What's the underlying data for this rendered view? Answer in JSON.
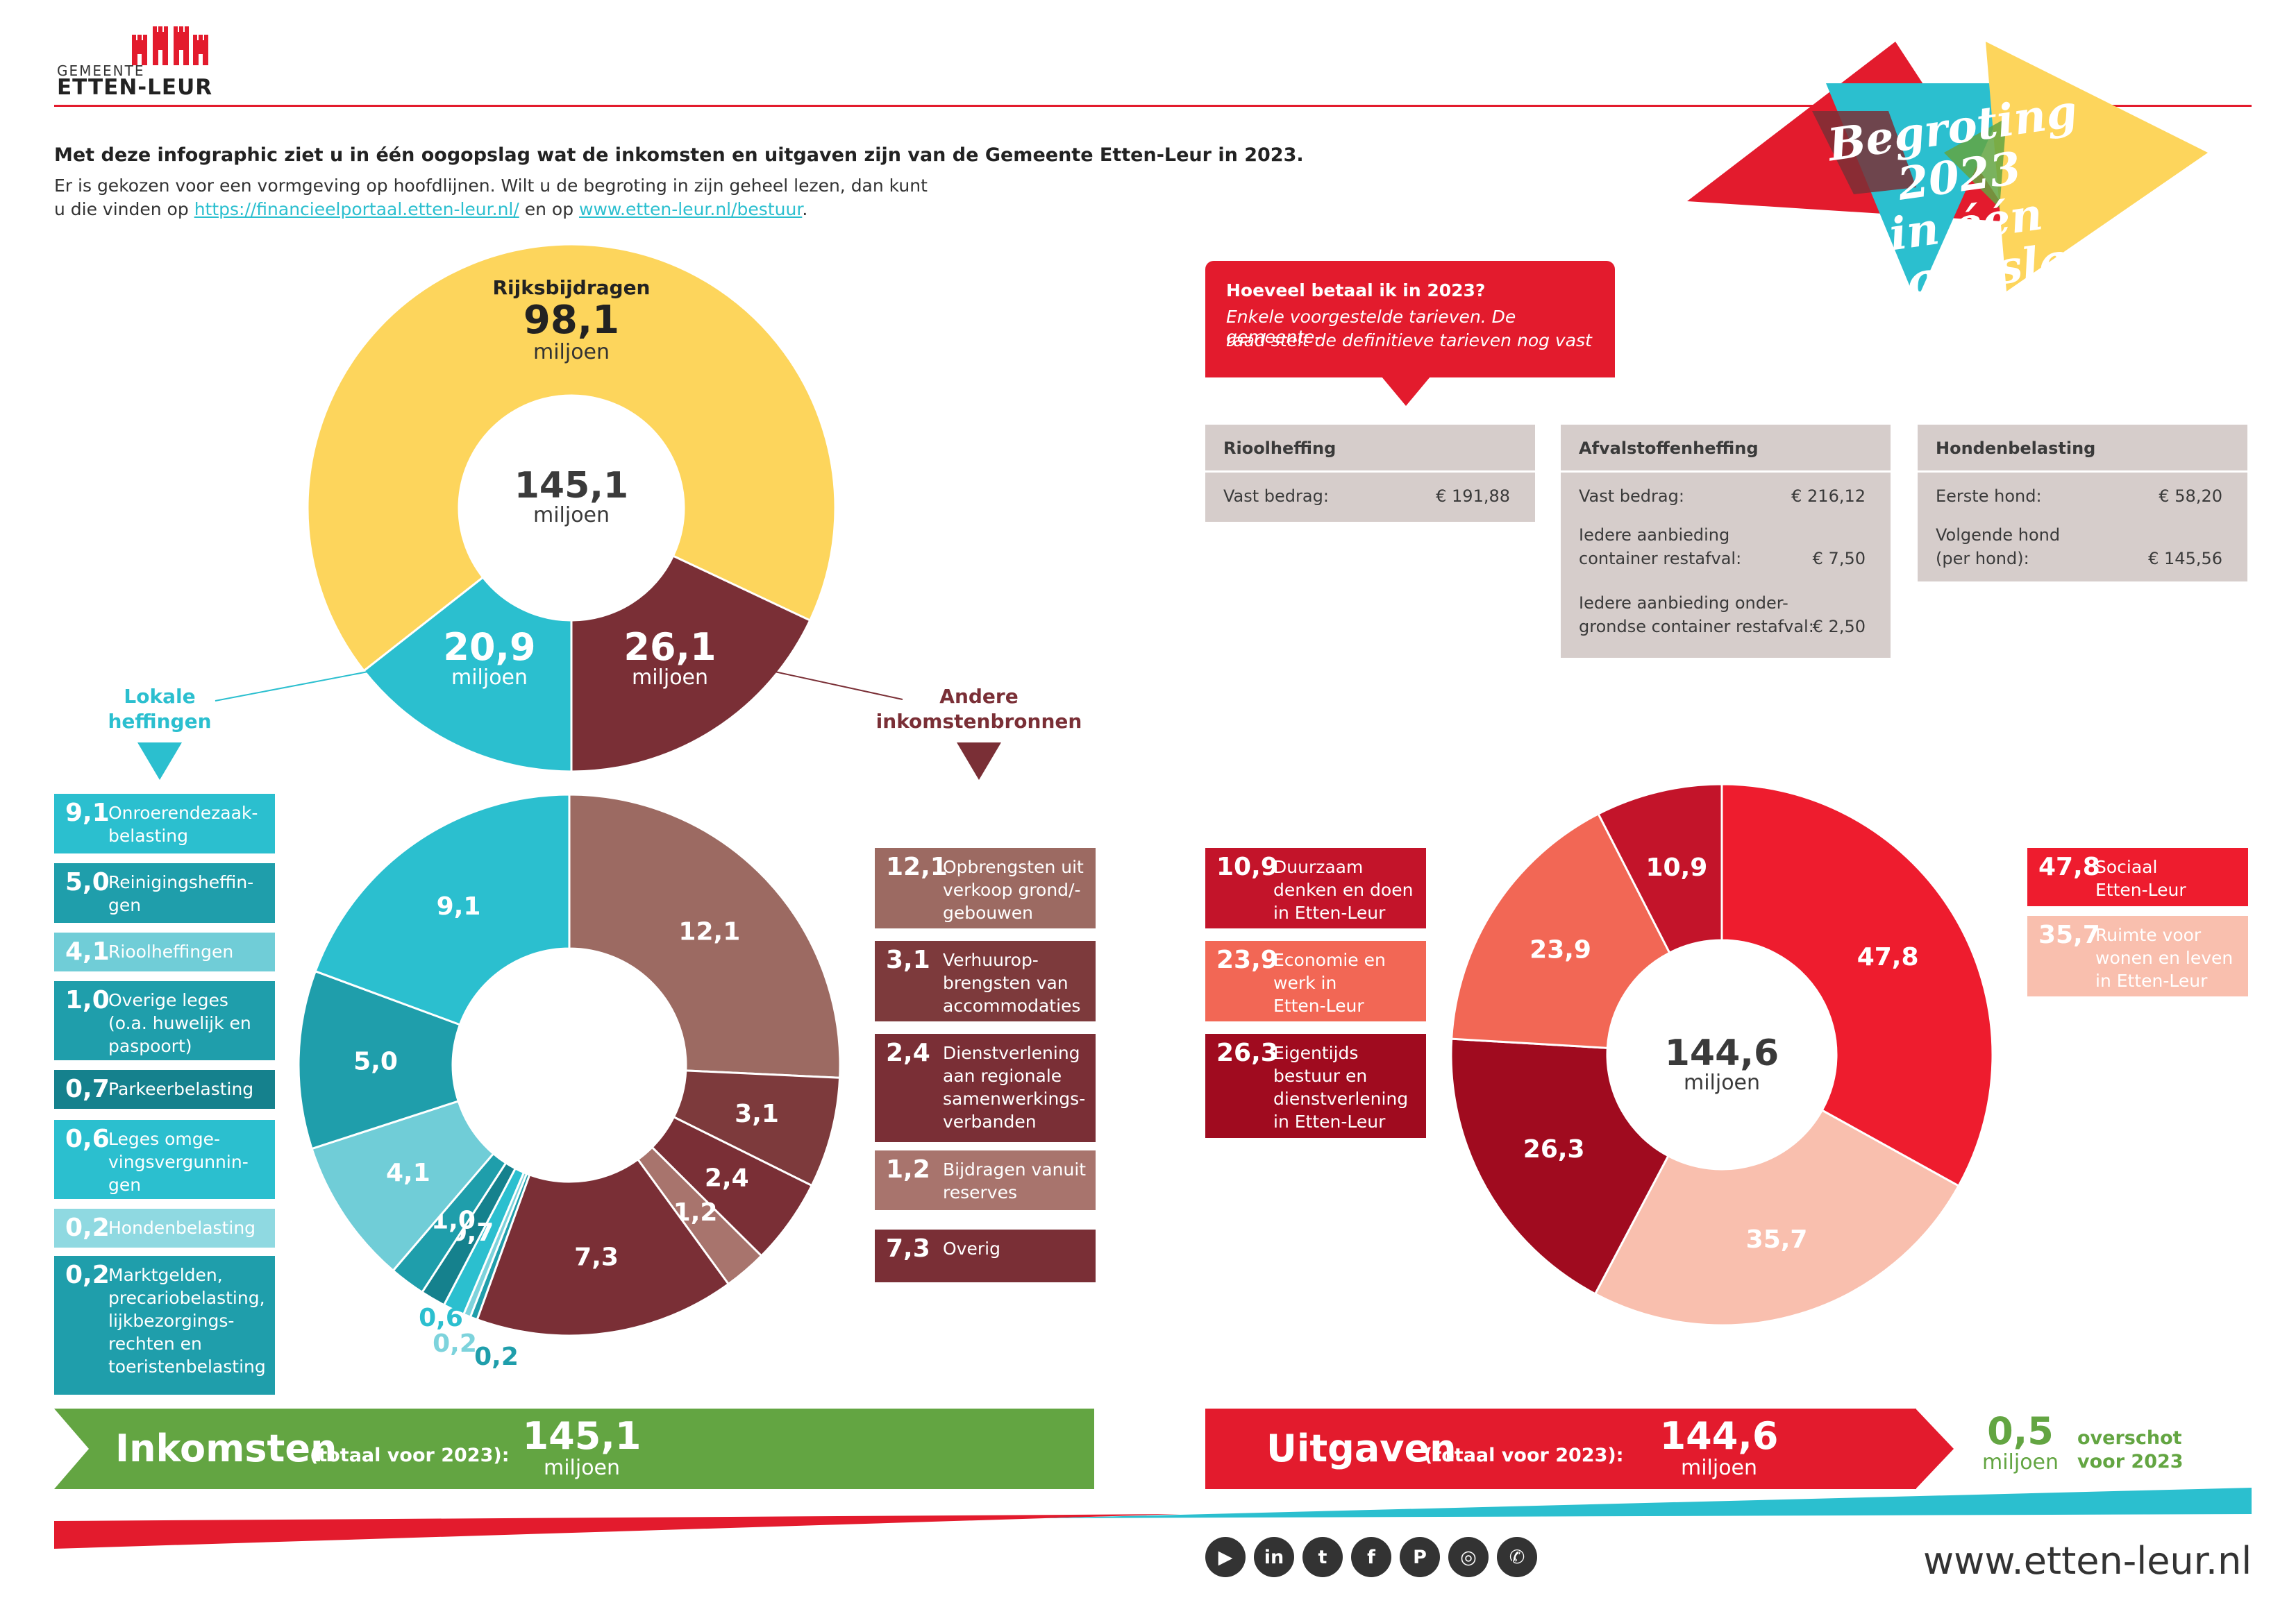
{
  "logo": {
    "small": "GEMEENTE",
    "big": "ETTEN-LEUR"
  },
  "banner": {
    "line1": "Begroting 2023",
    "line2": "in één oogopslag"
  },
  "intro": {
    "heading": "Met deze infographic ziet u in één oogopslag wat de inkomsten en uitgaven zijn van de Gemeente Etten-Leur in 2023.",
    "line2": "Er is gekozen voor een vormgeving op hoofdlijnen. Wilt u de begroting in zijn geheel lezen, dan kunt",
    "line3_a": "u die vinden op ",
    "link1": "https://financieelportaal.etten-leur.nl/",
    "line3_b": " en op ",
    "link2": "www.etten-leur.nl/bestuur",
    "line3_c": "."
  },
  "colors": {
    "yellow": "#fdd55c",
    "cyan": "#2bbfcf",
    "maroon": "#7a2f36",
    "green": "#63a542",
    "red": "#e31b2d"
  },
  "income_top": {
    "total": "145,1",
    "unit": "miljoen",
    "segments": [
      {
        "name": "Rijksbijdragen",
        "value": 98.1,
        "label": "98,1",
        "color": "#fdd55c"
      },
      {
        "name": "Andere inkomstenbronnen",
        "value": 26.1,
        "label": "26,1",
        "color": "#7a2f36"
      },
      {
        "name": "Lokale heffingen",
        "value": 20.9,
        "label": "20,9",
        "color": "#2bbfcf"
      }
    ],
    "label_rijks": "Rijksbijdragen",
    "label_lokale": "Lokale heffingen",
    "label_andere": "Andere inkomstenbronnen"
  },
  "income_detail": {
    "slices": [
      {
        "label": "12,1",
        "value": 12.1,
        "color": "#9c6a62"
      },
      {
        "label": "3,1",
        "value": 3.1,
        "color": "#7d3a3c"
      },
      {
        "label": "2,4",
        "value": 2.4,
        "color": "#7a2f36"
      },
      {
        "label": "1,2",
        "value": 1.2,
        "color": "#a8746d"
      },
      {
        "label": "7,3",
        "value": 7.3,
        "color": "#7a2f36"
      },
      {
        "label": "0,2",
        "value": 0.2,
        "color": "#1f9eab"
      },
      {
        "label": "0,2",
        "value": 0.2,
        "color": "#7dd3dc"
      },
      {
        "label": "0,6",
        "value": 0.6,
        "color": "#2bbfcf"
      },
      {
        "label": "0,7",
        "value": 0.7,
        "color": "#15818d"
      },
      {
        "label": "1,0",
        "value": 1.0,
        "color": "#1f9eab"
      },
      {
        "label": "4,1",
        "value": 4.1,
        "color": "#70cdd7"
      },
      {
        "label": "5,0",
        "value": 5.0,
        "color": "#1f9eab"
      },
      {
        "label": "9,1",
        "value": 9.1,
        "color": "#2bbfcf"
      }
    ]
  },
  "lokale_items": [
    {
      "value": "9,1",
      "text": [
        "Onroerendezaak-",
        "belasting"
      ],
      "color": "#2bbfcf"
    },
    {
      "value": "5,0",
      "text": [
        "Reinigingsheffin-",
        "gen"
      ],
      "color": "#1f9eab"
    },
    {
      "value": "4,1",
      "text": [
        "Rioolheffingen"
      ],
      "color": "#70cdd7"
    },
    {
      "value": "1,0",
      "text": [
        "Overige leges",
        "(o.a. huwelijk en",
        "paspoort)"
      ],
      "color": "#1f9eab"
    },
    {
      "value": "0,7",
      "text": [
        "Parkeerbelasting"
      ],
      "color": "#15818d"
    },
    {
      "value": "0,6",
      "text": [
        "Leges omge-",
        "vingsvergunnin-",
        "gen"
      ],
      "color": "#2bbfcf"
    },
    {
      "value": "0,2",
      "text": [
        "Hondenbelasting"
      ],
      "color": "#8fd9e1"
    },
    {
      "value": "0,2",
      "text": [
        "Marktgelden,",
        "precariobelasting,",
        "lijkbezorgings-",
        "rechten en",
        "toeristenbelasting"
      ],
      "color": "#1f9eab"
    }
  ],
  "andere_items": [
    {
      "value": "12,1",
      "text": [
        "Opbrengsten uit",
        "verkoop grond/-",
        "gebouwen"
      ],
      "color": "#9c6a62"
    },
    {
      "value": "3,1",
      "text": [
        "Verhuurop-",
        "brengsten van",
        "accommodaties"
      ],
      "color": "#7d3a3c"
    },
    {
      "value": "2,4",
      "text": [
        "Dienstverlening",
        "aan regionale",
        "samenwerkings-",
        "verbanden"
      ],
      "color": "#7a2f36"
    },
    {
      "value": "1,2",
      "text": [
        "Bijdragen vanuit",
        "reserves"
      ],
      "color": "#a8746d"
    },
    {
      "value": "7,3",
      "text": [
        "Overig"
      ],
      "color": "#7a2f36"
    }
  ],
  "tarieven": {
    "title": "Hoeveel betaal ik in 2023?",
    "subtitle1": "Enkele voorgestelde tarieven. De gemeente-",
    "subtitle2": "raad stelt de definitieve tarieven nog vast",
    "riool": {
      "header": "Rioolheffing",
      "label": "Vast bedrag:",
      "value": "€ 191,88"
    },
    "afval": {
      "header": "Afvalstoffenheffing",
      "r1_label": "Vast bedrag:",
      "r1_value": "€ 216,12",
      "r2_l1": "Iedere aanbieding",
      "r2_l2": "container restafval:",
      "r2_value": "€     7,50",
      "r3_l1": "Iedere aanbieding onder-",
      "r3_l2": "grondse container restafval:",
      "r3_value": "€     2,50"
    },
    "honden": {
      "header": "Hondenbelasting",
      "r1_label": "Eerste hond:",
      "r1_value": "€   58,20",
      "r2_l1": "Volgende hond",
      "r2_l2": "(per hond):",
      "r2_value": "€ 145,56"
    }
  },
  "uitgaven_chart": {
    "total": "144,6",
    "unit": "miljoen",
    "slices": [
      {
        "label": "47,8",
        "value": 47.8,
        "color": "#ee1c2e"
      },
      {
        "label": "35,7",
        "value": 35.7,
        "color": "#f9bfae"
      },
      {
        "label": "26,3",
        "value": 26.3,
        "color": "#a00b1f"
      },
      {
        "label": "23,9",
        "value": 23.9,
        "color": "#f26755"
      },
      {
        "label": "10,9",
        "value": 10.9,
        "color": "#c3142a"
      }
    ]
  },
  "uitgaven_left": [
    {
      "value": "10,9",
      "text": [
        "Duurzaam",
        "denken en doen",
        "in Etten-Leur"
      ],
      "color": "#c3142a"
    },
    {
      "value": "23,9",
      "text": [
        "Economie en",
        "werk in",
        "Etten-Leur"
      ],
      "color": "#f26755"
    },
    {
      "value": "26,3",
      "text": [
        "Eigentijds",
        "bestuur en",
        "dienstverlening",
        "in Etten-Leur"
      ],
      "color": "#a00b1f"
    }
  ],
  "uitgaven_right": [
    {
      "value": "47,8",
      "text": [
        "Sociaal",
        "Etten-Leur"
      ],
      "color": "#ee1c2e"
    },
    {
      "value": "35,7",
      "text": [
        "Ruimte voor",
        "wonen en leven",
        "in Etten-Leur"
      ],
      "color": "#f9bfae"
    }
  ],
  "bars": {
    "inkomsten": {
      "label": "Inkomsten",
      "sub": "(totaal voor 2023):",
      "value": "145,1",
      "unit": "miljoen"
    },
    "uitgaven": {
      "label": "Uitgaven",
      "sub": "(totaal voor 2023):",
      "value": "144,6",
      "unit": "miljoen"
    },
    "overschot": {
      "value": "0,5",
      "unit": "miljoen",
      "text1": "overschot",
      "text2": "voor 2023"
    }
  },
  "footer": {
    "url": "www.etten-leur.nl",
    "social": [
      {
        "icon": "youtube-icon",
        "glyph": "▶"
      },
      {
        "icon": "linkedin-icon",
        "glyph": "in"
      },
      {
        "icon": "twitter-icon",
        "glyph": "t"
      },
      {
        "icon": "facebook-icon",
        "glyph": "f"
      },
      {
        "icon": "pinterest-icon",
        "glyph": "P"
      },
      {
        "icon": "instagram-icon",
        "glyph": "◎"
      },
      {
        "icon": "whatsapp-icon",
        "glyph": "✆"
      }
    ]
  }
}
